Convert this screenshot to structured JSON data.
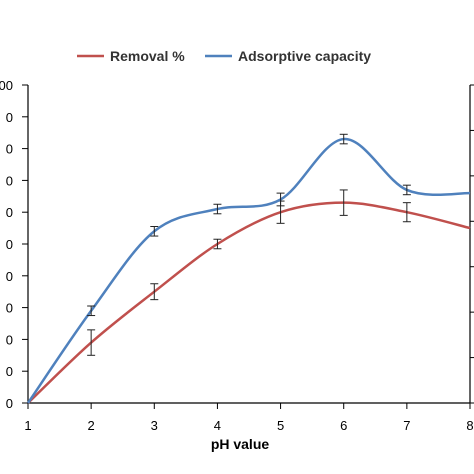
{
  "chart_data": {
    "type": "line",
    "xlabel": "pH value",
    "x": [
      1,
      2,
      3,
      4,
      5,
      6,
      7,
      8
    ],
    "x_ticks": [
      "1",
      "2",
      "3",
      "4",
      "5",
      "6",
      "7",
      "8"
    ],
    "xlim": [
      1,
      8
    ],
    "y_tick_labels": [
      "0",
      "0",
      "0",
      "0",
      "0",
      "0",
      "0",
      "0",
      "0",
      "0",
      "00"
    ],
    "ylim": [
      0,
      100
    ],
    "series": [
      {
        "name": "Removal %",
        "color": "#c0504d",
        "values": [
          0,
          19,
          35,
          50,
          60,
          63,
          60,
          55
        ],
        "errors": [
          0,
          4,
          2.5,
          1.5,
          3.5,
          4,
          3,
          0
        ]
      },
      {
        "name": "Adsorptive capacity",
        "color": "#4f81bd",
        "values": [
          0,
          29,
          54,
          61,
          64,
          83,
          67,
          66
        ],
        "errors": [
          0,
          1.5,
          1.5,
          1.5,
          2,
          1.5,
          1.5,
          0
        ]
      }
    ],
    "legend_position": "top",
    "grid": false,
    "secondary_axis": "right, unlabeled"
  }
}
